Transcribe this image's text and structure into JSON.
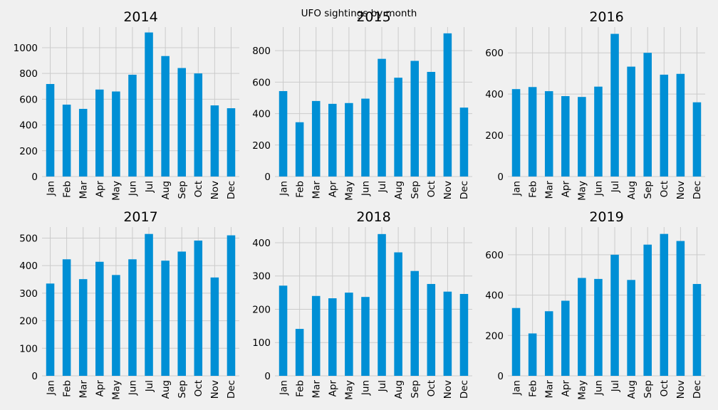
{
  "figure": {
    "suptitle": "UFO sightings by month",
    "background": "#f0f0f0",
    "bar_color": "#008fd5",
    "grid_color": "#cbcbcb",
    "text_color": "#000000"
  },
  "chart_data": [
    {
      "type": "bar",
      "title": "2014",
      "categories": [
        "Jan",
        "Feb",
        "Mar",
        "Apr",
        "May",
        "Jun",
        "Jul",
        "Aug",
        "Sep",
        "Oct",
        "Nov",
        "Dec"
      ],
      "values": [
        718,
        558,
        525,
        675,
        660,
        790,
        1118,
        935,
        842,
        800,
        552,
        530
      ],
      "ylim": [
        0,
        1160
      ],
      "yticks": [
        0,
        200,
        400,
        600,
        800,
        1000
      ],
      "grid": true
    },
    {
      "type": "bar",
      "title": "2015",
      "categories": [
        "Jan",
        "Feb",
        "Mar",
        "Apr",
        "May",
        "Jun",
        "Jul",
        "Aug",
        "Sep",
        "Oct",
        "Nov",
        "Dec"
      ],
      "values": [
        543,
        345,
        480,
        462,
        467,
        495,
        748,
        628,
        735,
        665,
        910,
        438
      ],
      "ylim": [
        0,
        950
      ],
      "yticks": [
        0,
        200,
        400,
        600,
        800
      ],
      "grid": true
    },
    {
      "type": "bar",
      "title": "2016",
      "categories": [
        "Jan",
        "Feb",
        "Mar",
        "Apr",
        "May",
        "Jun",
        "Jul",
        "Aug",
        "Sep",
        "Oct",
        "Nov",
        "Dec"
      ],
      "values": [
        424,
        434,
        414,
        390,
        386,
        436,
        692,
        533,
        600,
        494,
        498,
        360
      ],
      "ylim": [
        0,
        725
      ],
      "yticks": [
        0,
        200,
        400,
        600
      ],
      "grid": true
    },
    {
      "type": "bar",
      "title": "2017",
      "categories": [
        "Jan",
        "Feb",
        "Mar",
        "Apr",
        "May",
        "Jun",
        "Jul",
        "Aug",
        "Sep",
        "Oct",
        "Nov",
        "Dec"
      ],
      "values": [
        335,
        423,
        351,
        414,
        366,
        423,
        515,
        418,
        451,
        491,
        357,
        510
      ],
      "ylim": [
        0,
        540
      ],
      "yticks": [
        0,
        100,
        200,
        300,
        400,
        500
      ],
      "grid": true
    },
    {
      "type": "bar",
      "title": "2018",
      "categories": [
        "Jan",
        "Feb",
        "Mar",
        "Apr",
        "May",
        "Jun",
        "Jul",
        "Aug",
        "Sep",
        "Oct",
        "Nov",
        "Dec"
      ],
      "values": [
        271,
        141,
        240,
        233,
        250,
        237,
        426,
        371,
        315,
        276,
        253,
        246
      ],
      "ylim": [
        0,
        447
      ],
      "yticks": [
        0,
        100,
        200,
        300,
        400
      ],
      "grid": true
    },
    {
      "type": "bar",
      "title": "2019",
      "categories": [
        "Jan",
        "Feb",
        "Mar",
        "Apr",
        "May",
        "Jun",
        "Jul",
        "Aug",
        "Sep",
        "Oct",
        "Nov",
        "Dec"
      ],
      "values": [
        336,
        210,
        320,
        372,
        485,
        480,
        600,
        475,
        650,
        703,
        668,
        455
      ],
      "ylim": [
        0,
        737
      ],
      "yticks": [
        0,
        200,
        400,
        600
      ],
      "grid": true
    }
  ]
}
